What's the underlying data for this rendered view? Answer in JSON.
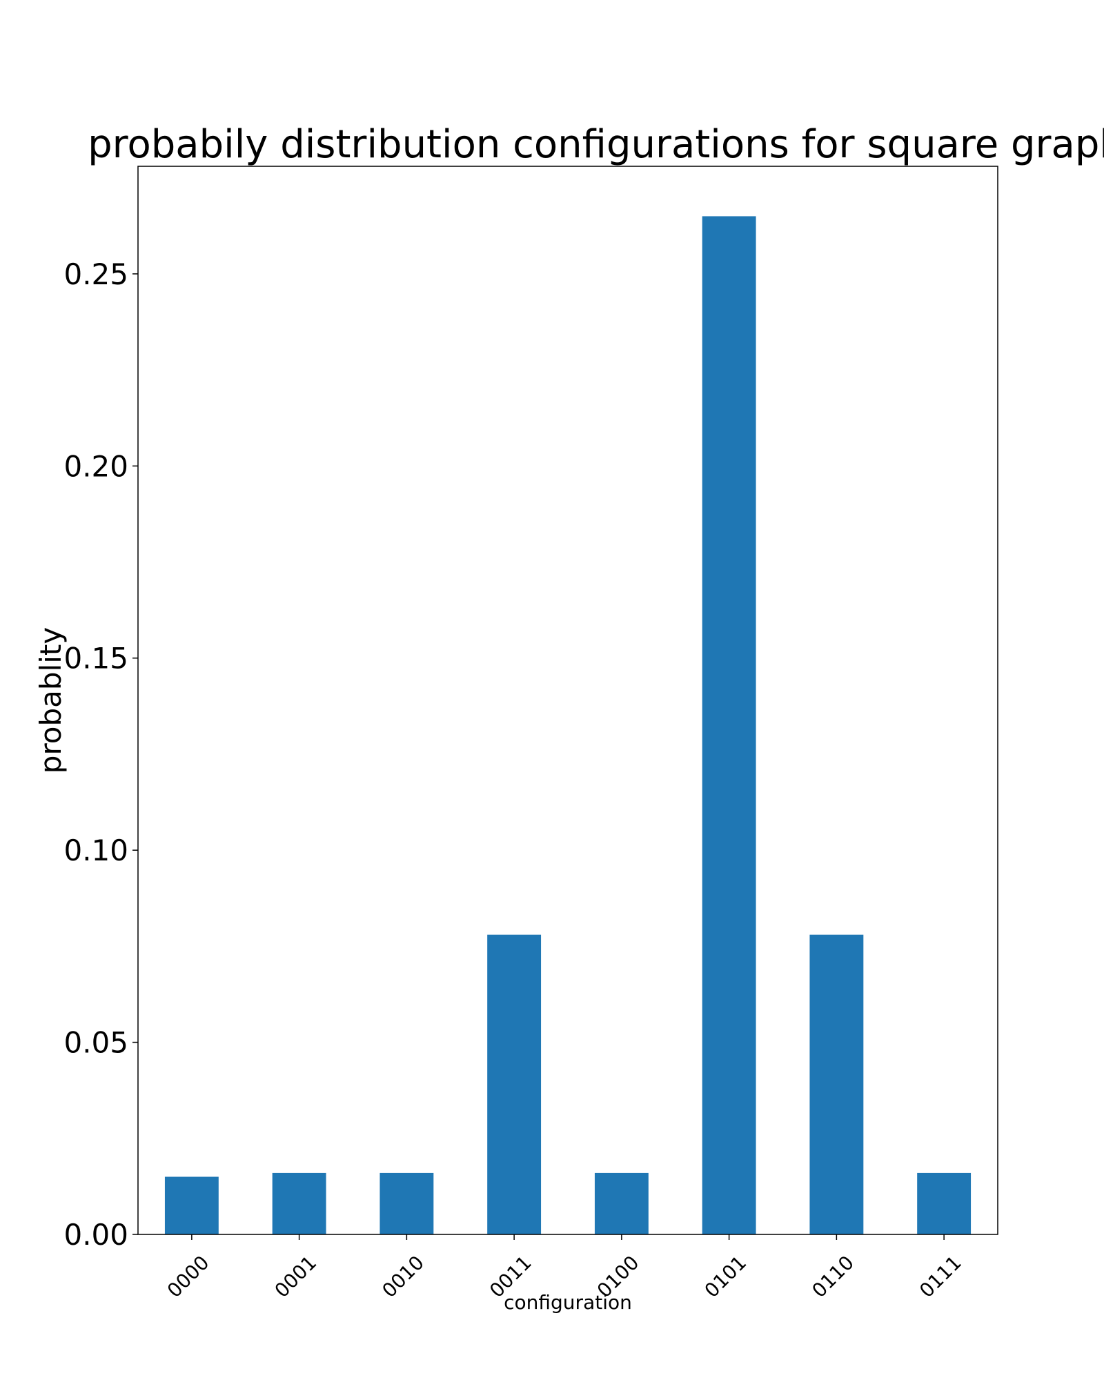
{
  "chart_data": {
    "type": "bar",
    "title": "probabily distribution configurations for square graph",
    "xlabel": "configuration",
    "ylabel": "probablity",
    "categories": [
      "0000",
      "0001",
      "0010",
      "0011",
      "0100",
      "0101",
      "0110",
      "0111"
    ],
    "values": [
      0.015,
      0.016,
      0.016,
      0.078,
      0.016,
      0.265,
      0.078,
      0.016
    ],
    "ylim": [
      0,
      0.278
    ],
    "yticks": [
      "0.00",
      "0.05",
      "0.10",
      "0.15",
      "0.20",
      "0.25"
    ],
    "ytick_values": [
      0,
      0.05,
      0.1,
      0.15,
      0.2,
      0.25
    ],
    "grid": false,
    "bar_color": "#1f77b4"
  }
}
